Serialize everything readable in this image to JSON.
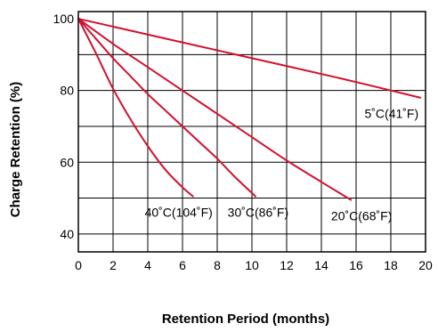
{
  "chart_data": {
    "type": "line",
    "title": "",
    "xlabel": "Retention Period (months)",
    "ylabel": "Charge Retention (%)",
    "xlim": [
      0,
      20
    ],
    "ylim": [
      35,
      102
    ],
    "x_ticks": [
      0,
      2,
      4,
      6,
      8,
      10,
      12,
      14,
      16,
      18,
      20
    ],
    "y_ticks": [
      40,
      60,
      80,
      100
    ],
    "grid": true,
    "legend": "inline labels near line ends",
    "line_color": "#d1122f",
    "series": [
      {
        "name": "5˚C(41˚F)",
        "x": [
          0,
          5,
          10,
          15,
          19.7
        ],
        "y": [
          100,
          94.5,
          89,
          83.5,
          78
        ]
      },
      {
        "name": "20˚C(68˚F)",
        "x": [
          0,
          2,
          4,
          6,
          8,
          10,
          12,
          14,
          15.7
        ],
        "y": [
          100,
          93,
          86.5,
          80,
          73.5,
          67,
          60.5,
          54.5,
          49.5
        ]
      },
      {
        "name": "30˚C(86˚F)",
        "x": [
          0,
          1,
          2,
          3,
          4,
          5,
          6,
          7,
          8,
          9,
          10.2
        ],
        "y": [
          100,
          94.5,
          89,
          84,
          79,
          74.5,
          70,
          65.5,
          61,
          56,
          50.5
        ]
      },
      {
        "name": "40˚C(104˚F)",
        "x": [
          0,
          1,
          2,
          3,
          4,
          5,
          6,
          6.6
        ],
        "y": [
          100,
          90.5,
          80.5,
          72,
          64.5,
          58,
          53,
          50.5
        ]
      }
    ]
  }
}
